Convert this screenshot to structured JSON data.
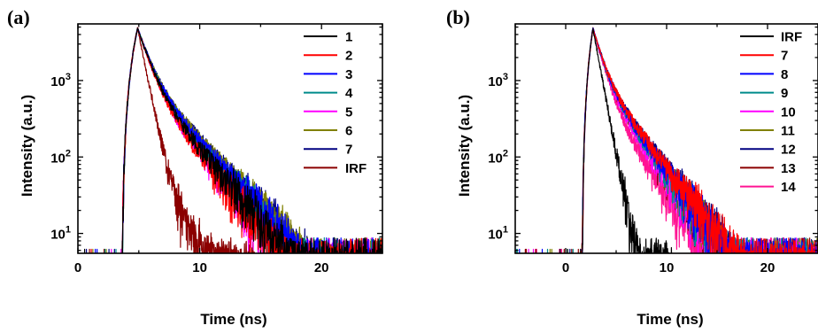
{
  "chart_data": [
    {
      "panel_label": "(a)",
      "type": "line",
      "xlabel": "Time (ns)",
      "ylabel": "Intensity (a.u.)",
      "xlim": [
        0,
        25
      ],
      "ylim": [
        5.5,
        5500
      ],
      "y_scale": "log",
      "x_ticks": [
        0,
        10,
        20
      ],
      "y_ticks": [
        {
          "value": 10,
          "base": "10",
          "exp": "1"
        },
        {
          "value": 100,
          "base": "10",
          "exp": "2"
        },
        {
          "value": 1000,
          "base": "10",
          "exp": "3"
        }
      ],
      "legend_position": "top-right",
      "series": [
        {
          "name": "1",
          "color": "#000000",
          "rise": 3.6,
          "peak": 4.9,
          "peak_value": 4800,
          "tau1": 0.8,
          "a1": 0.78,
          "tau2": 2.4,
          "noise_floor": 5.8
        },
        {
          "name": "2",
          "color": "#ff0000",
          "rise": 3.6,
          "peak": 4.9,
          "peak_value": 4800,
          "tau1": 0.8,
          "a1": 0.8,
          "tau2": 2.3,
          "noise_floor": 5.8
        },
        {
          "name": "3",
          "color": "#0000ff",
          "rise": 3.6,
          "peak": 4.9,
          "peak_value": 4800,
          "tau1": 0.8,
          "a1": 0.75,
          "tau2": 2.5,
          "noise_floor": 5.8
        },
        {
          "name": "4",
          "color": "#008b8b",
          "rise": 3.6,
          "peak": 4.9,
          "peak_value": 4800,
          "tau1": 0.8,
          "a1": 0.76,
          "tau2": 2.45,
          "noise_floor": 5.8
        },
        {
          "name": "5",
          "color": "#ff00ff",
          "rise": 3.6,
          "peak": 4.9,
          "peak_value": 4800,
          "tau1": 0.8,
          "a1": 0.79,
          "tau2": 2.3,
          "noise_floor": 5.8
        },
        {
          "name": "6",
          "color": "#808000",
          "rise": 3.6,
          "peak": 4.9,
          "peak_value": 4800,
          "tau1": 0.8,
          "a1": 0.74,
          "tau2": 2.55,
          "noise_floor": 5.8
        },
        {
          "name": "7",
          "color": "#000080",
          "rise": 3.6,
          "peak": 4.9,
          "peak_value": 4800,
          "tau1": 0.8,
          "a1": 0.74,
          "tau2": 2.55,
          "noise_floor": 5.8
        },
        {
          "name": "IRF",
          "color": "#8b0000",
          "rise": 3.6,
          "peak": 4.9,
          "peak_value": 4800,
          "tau1": 0.55,
          "a1": 0.988,
          "tau2": 2.5,
          "noise_floor": 5.8,
          "end": 14.5
        }
      ]
    },
    {
      "panel_label": "(b)",
      "type": "line",
      "xlabel": "Time (ns)",
      "ylabel": "Intensity (a.u.)",
      "xlim": [
        -5,
        25
      ],
      "ylim": [
        5.5,
        5500
      ],
      "y_scale": "log",
      "x_ticks": [
        0,
        10,
        20
      ],
      "y_ticks": [
        {
          "value": 10,
          "base": "10",
          "exp": "1"
        },
        {
          "value": 100,
          "base": "10",
          "exp": "2"
        },
        {
          "value": 1000,
          "base": "10",
          "exp": "3"
        }
      ],
      "legend_position": "top-right",
      "series": [
        {
          "name": "IRF",
          "color": "#000000",
          "rise": 1.6,
          "peak": 2.7,
          "peak_value": 4800,
          "tau1": 0.6,
          "a1": 0.985,
          "tau2": 1.4,
          "noise_floor": 5.8,
          "end": 10.5
        },
        {
          "name": "7",
          "color": "#ff0000",
          "rise": 1.6,
          "peak": 2.7,
          "peak_value": 4800,
          "tau1": 0.8,
          "a1": 0.74,
          "tau2": 2.6,
          "noise_floor": 5.8
        },
        {
          "name": "8",
          "color": "#0000ff",
          "rise": 1.6,
          "peak": 2.7,
          "peak_value": 4800,
          "tau1": 0.8,
          "a1": 0.75,
          "tau2": 2.55,
          "noise_floor": 5.8
        },
        {
          "name": "9",
          "color": "#008b8b",
          "rise": 1.6,
          "peak": 2.7,
          "peak_value": 4800,
          "tau1": 0.8,
          "a1": 0.76,
          "tau2": 2.5,
          "noise_floor": 5.8
        },
        {
          "name": "10",
          "color": "#ff00ff",
          "rise": 1.6,
          "peak": 2.7,
          "peak_value": 4800,
          "tau1": 0.8,
          "a1": 0.78,
          "tau2": 2.4,
          "noise_floor": 5.8
        },
        {
          "name": "11",
          "color": "#808000",
          "rise": 1.6,
          "peak": 2.7,
          "peak_value": 4800,
          "tau1": 0.8,
          "a1": 0.76,
          "tau2": 2.5,
          "noise_floor": 5.8
        },
        {
          "name": "12",
          "color": "#000080",
          "rise": 1.6,
          "peak": 2.7,
          "peak_value": 4800,
          "tau1": 0.8,
          "a1": 0.74,
          "tau2": 2.6,
          "noise_floor": 5.8
        },
        {
          "name": "13",
          "color": "#8b0000",
          "rise": 1.6,
          "peak": 2.7,
          "peak_value": 4800,
          "tau1": 0.8,
          "a1": 0.77,
          "tau2": 2.45,
          "noise_floor": 5.8
        },
        {
          "name": "14",
          "color": "#ff1493",
          "rise": 1.6,
          "peak": 2.7,
          "peak_value": 4800,
          "tau1": 0.8,
          "a1": 0.82,
          "tau2": 2.2,
          "noise_floor": 5.8
        }
      ]
    }
  ]
}
